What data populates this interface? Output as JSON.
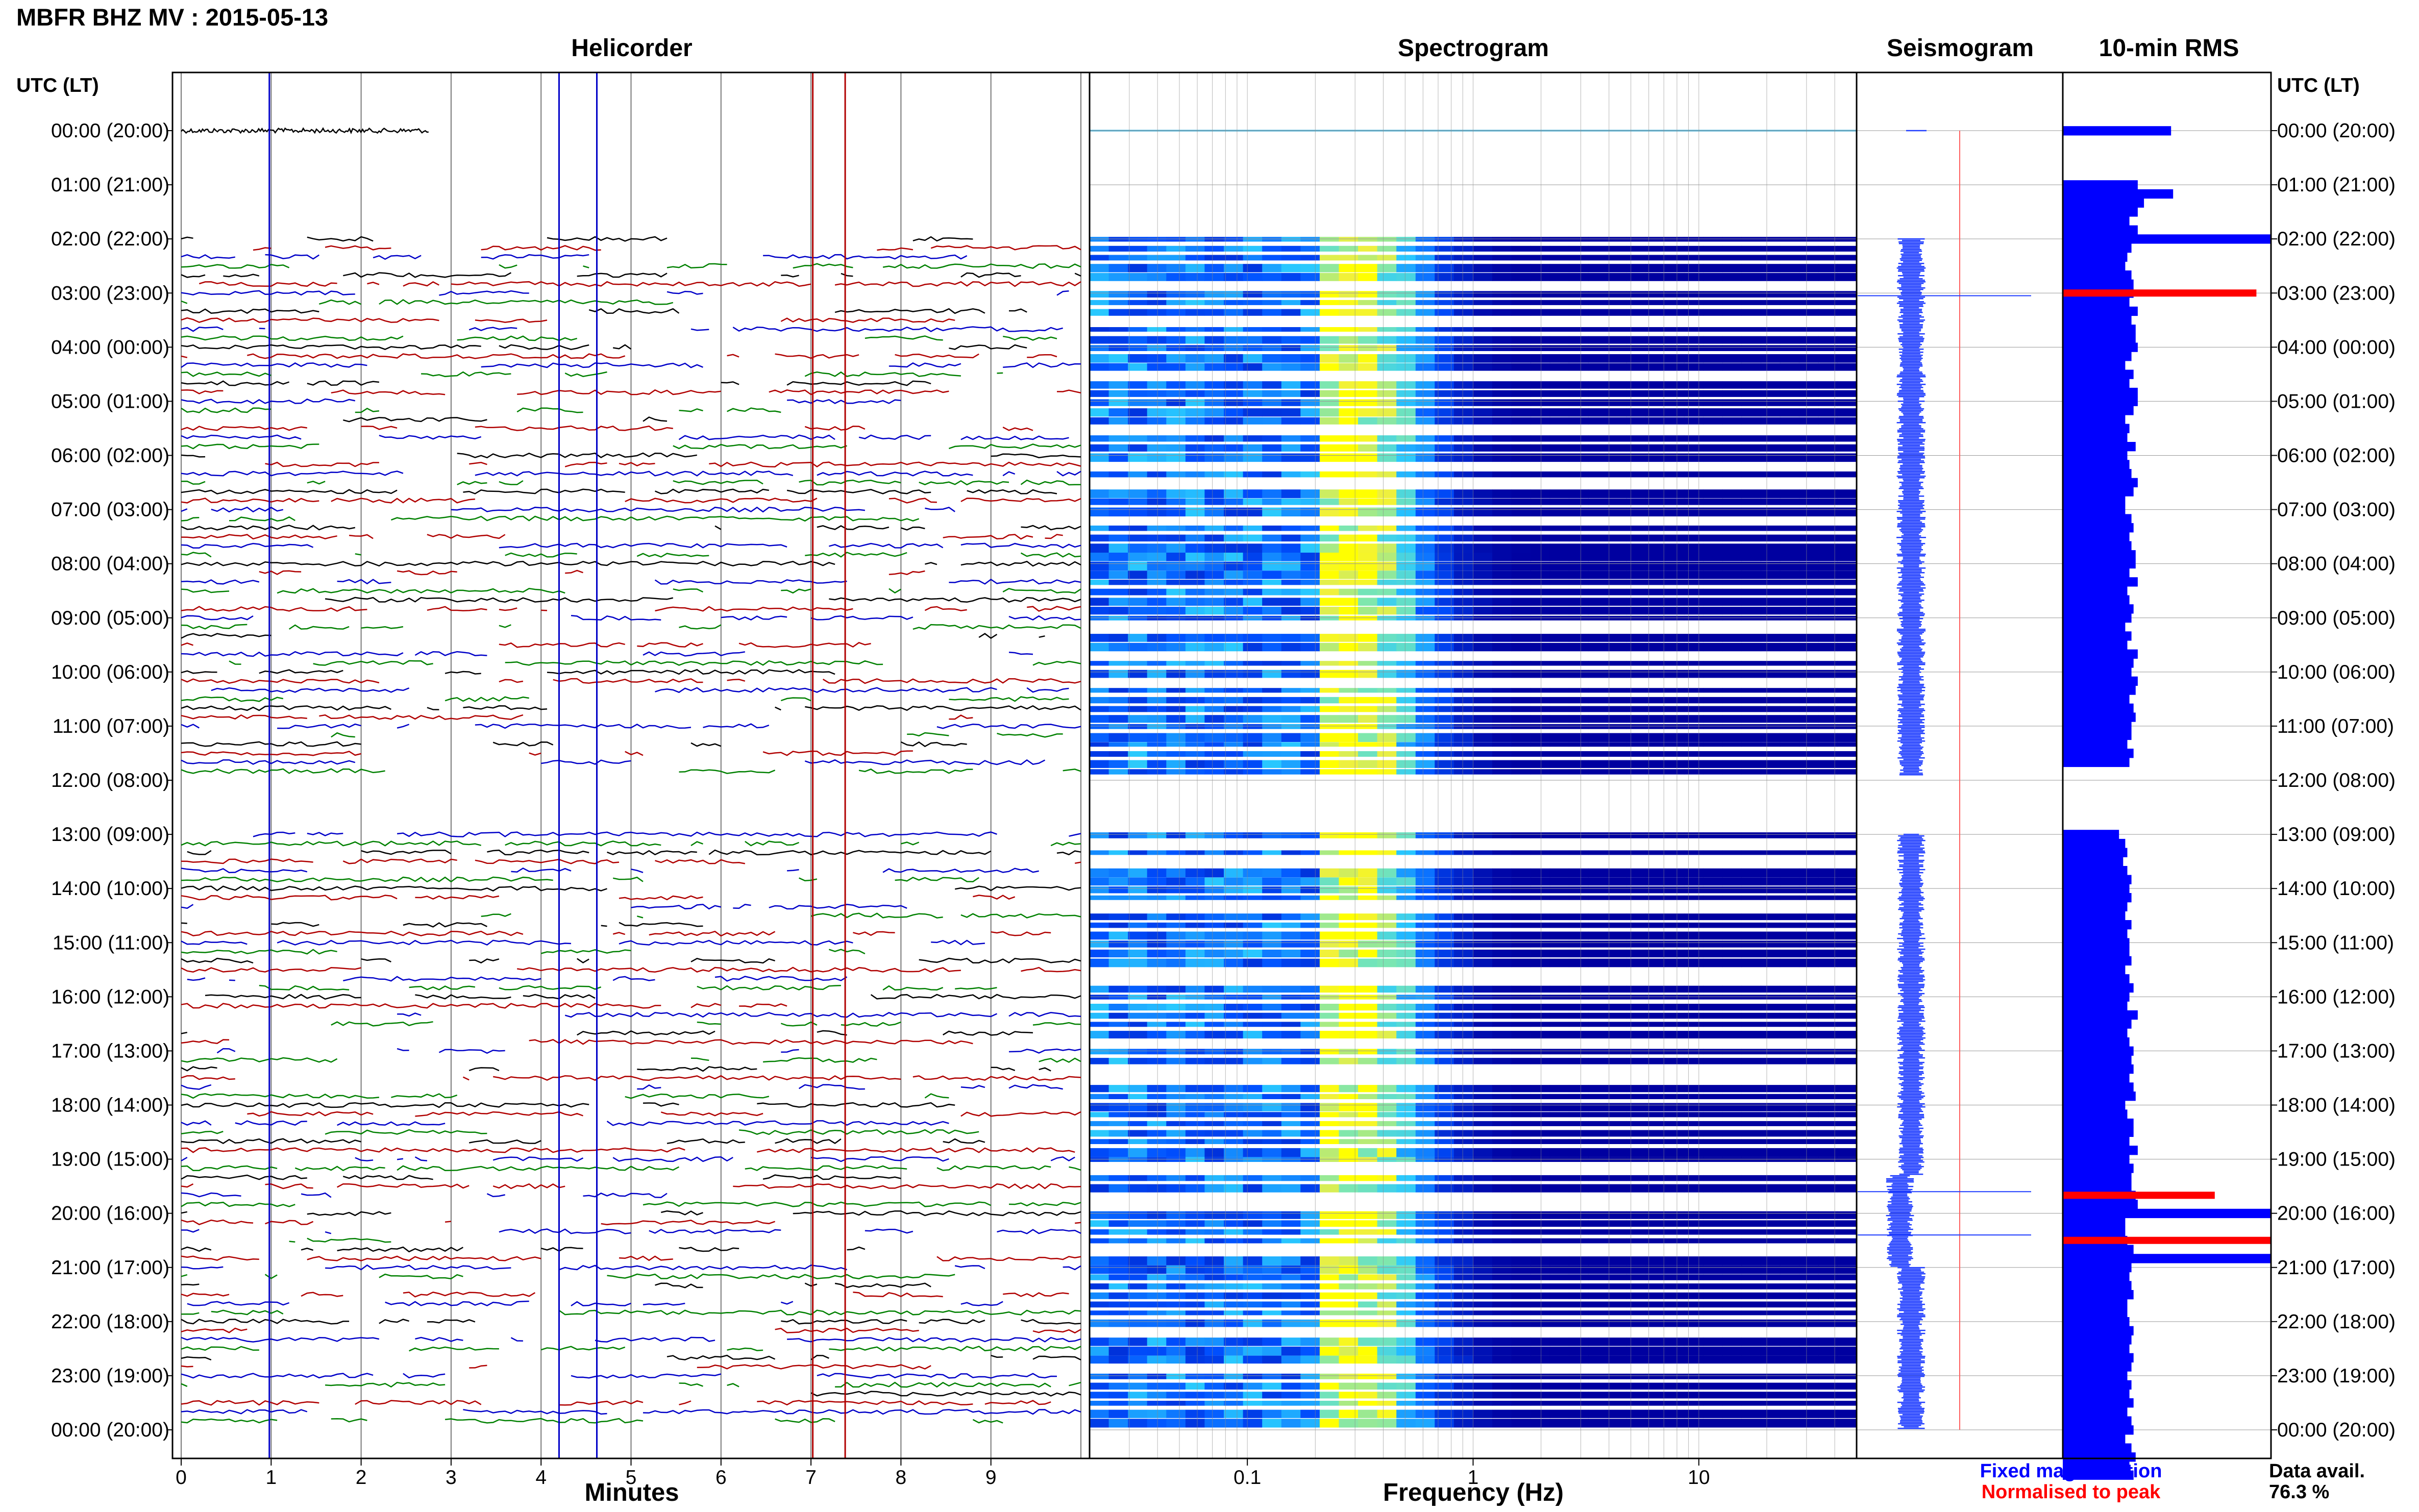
{
  "figure": {
    "title": "MBFR BHZ MV : 2015-05-13"
  },
  "panels": {
    "helicorder": {
      "title": "Helicorder",
      "xlabel": "Minutes"
    },
    "spectrogram": {
      "title": "Spectrogram",
      "xlabel": "Frequency (Hz)"
    },
    "seismogram": {
      "title": "Seismogram"
    },
    "rms": {
      "title": "10-min RMS"
    }
  },
  "legend": {
    "fixed": "Fixed magnification",
    "normalised": "Normalised to peak",
    "fixed_color": "#0000ff",
    "normalised_color": "#ff0000"
  },
  "data_availability": {
    "label": "Data avail.",
    "value": "76.3 %"
  },
  "chart_data": {
    "type": "heatmap",
    "title": "MBFR BHZ MV : 2015-05-13",
    "y_axis": {
      "label": "UTC (LT)",
      "ticks": [
        "00:00 (20:00)",
        "01:00 (21:00)",
        "02:00 (22:00)",
        "03:00 (23:00)",
        "04:00 (00:00)",
        "05:00 (01:00)",
        "06:00 (02:00)",
        "07:00 (03:00)",
        "08:00 (04:00)",
        "09:00 (05:00)",
        "10:00 (06:00)",
        "11:00 (07:00)",
        "12:00 (08:00)",
        "13:00 (09:00)",
        "14:00 (10:00)",
        "15:00 (11:00)",
        "16:00 (12:00)",
        "17:00 (13:00)",
        "18:00 (14:00)",
        "19:00 (15:00)",
        "20:00 (16:00)",
        "21:00 (17:00)",
        "22:00 (18:00)",
        "23:00 (19:00)",
        "00:00 (20:00)"
      ]
    },
    "helicorder_x": {
      "label": "Minutes",
      "range": [
        0,
        10
      ],
      "ticks": [
        "0",
        "1",
        "2",
        "3",
        "4",
        "5",
        "6",
        "7",
        "8",
        "9"
      ]
    },
    "spectrogram_x": {
      "label": "Frequency (Hz)",
      "scale": "log",
      "range": [
        0.02,
        50
      ],
      "ticks": [
        "0.1",
        "1",
        "10"
      ],
      "tick_values": [
        0.1,
        1,
        10
      ]
    },
    "data_gaps_hours": [
      [
        0.1,
        2.0
      ],
      [
        11.9,
        13.0
      ]
    ],
    "trace_colors": [
      "#000000",
      "#b00000",
      "#0000c8",
      "#008000"
    ],
    "rms_10min_relative": [
      0.52,
      0,
      0,
      0,
      0,
      0,
      0.36,
      0.53,
      0.39,
      0.36,
      0.32,
      0.36,
      1.0,
      0.33,
      0.31,
      0.3,
      0.33,
      0.34,
      0.34,
      0.32,
      0.36,
      0.33,
      0.35,
      0.35,
      0.36,
      0.33,
      0.3,
      0.34,
      0.32,
      0.36,
      0.36,
      0.34,
      0.3,
      0.32,
      0.31,
      0.35,
      0.31,
      0.32,
      0.33,
      0.36,
      0.34,
      0.3,
      0.3,
      0.33,
      0.34,
      0.32,
      0.33,
      0.35,
      0.35,
      0.32,
      0.36,
      0.31,
      0.32,
      0.34,
      0.33,
      0.3,
      0.33,
      0.31,
      0.36,
      0.34,
      0.33,
      0.36,
      0.35,
      0.32,
      0.34,
      0.35,
      0.33,
      0.33,
      0.31,
      0.34,
      0.32,
      0,
      0,
      0,
      0,
      0,
      0,
      0,
      0.27,
      0.3,
      0.31,
      0.29,
      0.31,
      0.33,
      0.32,
      0.33,
      0.31,
      0.3,
      0.33,
      0.31,
      0.32,
      0.32,
      0.33,
      0.3,
      0.32,
      0.34,
      0.32,
      0.31,
      0.36,
      0.33,
      0.31,
      0.32,
      0.34,
      0.33,
      0.34,
      0.32,
      0.34,
      0.35,
      0.3,
      0.31,
      0.34,
      0.34,
      0.32,
      0.36,
      0.32,
      0.34,
      0.33,
      0.33,
      0.35,
      0.36,
      1.0,
      0.3,
      0.3,
      0.31,
      0.34,
      1.0,
      0.33,
      0.32,
      0.33,
      0.34,
      0.31,
      0.31,
      0.32,
      0.34,
      0.33,
      0.32,
      0.34,
      0.33,
      0.31,
      0.33,
      0.32,
      0.34,
      0.31,
      0.33,
      0.34,
      0.3,
      0.33,
      0.35,
      0.32,
      0.34
    ],
    "rms_peak_markers": [
      {
        "time": "03:00",
        "normalised_fraction": 0.93
      },
      {
        "time": "19:40",
        "normalised_fraction": 0.73
      },
      {
        "time": "20:30",
        "normalised_fraction": 1.0
      }
    ]
  }
}
